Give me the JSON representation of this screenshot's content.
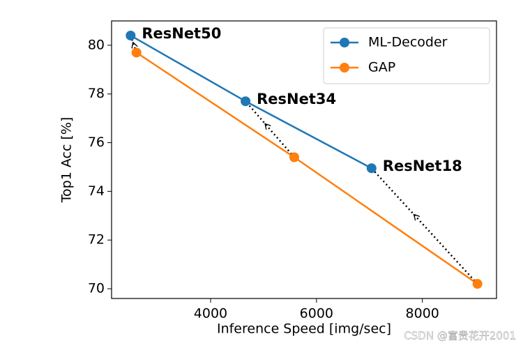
{
  "chart_data": {
    "type": "line",
    "xlabel": "Inference Speed [img/sec]",
    "ylabel": "Top1 Acc [%]",
    "xlim": [
      2130,
      9400
    ],
    "ylim": [
      69.6,
      81
    ],
    "xticks": [
      4000,
      6000,
      8000
    ],
    "yticks": [
      70,
      72,
      74,
      76,
      78,
      80
    ],
    "legend": "upper right",
    "series": [
      {
        "name": "ML-Decoder",
        "color": "#1f77b4",
        "x": [
          2490,
          4660,
          7040
        ],
        "values": [
          80.4,
          77.7,
          74.95
        ]
      },
      {
        "name": "GAP",
        "color": "#ff7f0e",
        "x": [
          2600,
          5580,
          9040
        ],
        "values": [
          79.7,
          75.4,
          70.2
        ]
      }
    ],
    "annotations": [
      "ResNet50",
      "ResNet34",
      "ResNet18"
    ],
    "watermark": "CSDN @富贵花开2001"
  }
}
